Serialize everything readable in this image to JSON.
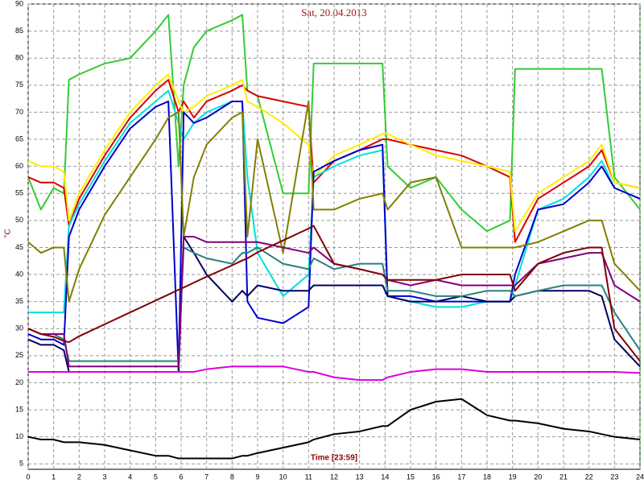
{
  "chart_data": {
    "type": "line",
    "title": "Sat, 20.04.2013",
    "x_label": "Time [23:59]",
    "y_label": "°C",
    "x": [
      0,
      0.5,
      1,
      1.4,
      1.6,
      2,
      3,
      4,
      5,
      5.5,
      5.9,
      6.1,
      6.5,
      7,
      8,
      8.4,
      8.6,
      9,
      10,
      11,
      11.2,
      12,
      13,
      13.9,
      14.1,
      15,
      16,
      17,
      18,
      18.9,
      19.1,
      20,
      21,
      22,
      22.5,
      23,
      24
    ],
    "xlim": [
      0,
      24
    ],
    "xticks": [
      0,
      1,
      2,
      3,
      4,
      5,
      6,
      7,
      8,
      9,
      10,
      11,
      12,
      13,
      14,
      15,
      16,
      17,
      18,
      19,
      20,
      21,
      22,
      23,
      24
    ],
    "ylim": [
      4,
      90
    ],
    "yticks": [
      5,
      10,
      15,
      20,
      25,
      30,
      35,
      40,
      45,
      50,
      55,
      60,
      65,
      70,
      75,
      80,
      85,
      90
    ],
    "grid": true,
    "series": [
      {
        "color": "#33cc33",
        "values": [
          58,
          52,
          56,
          55,
          76,
          77,
          79,
          80,
          85,
          88,
          60,
          75,
          82,
          85,
          87,
          88,
          74,
          73,
          55,
          55,
          79,
          79,
          79,
          79,
          60,
          56,
          58,
          52,
          48,
          50,
          78,
          78,
          78,
          78,
          78,
          58,
          52
        ]
      },
      {
        "color": "#dd0000",
        "values": [
          58,
          57,
          57,
          56,
          49,
          54,
          62,
          69,
          74,
          76,
          70,
          72,
          69,
          72,
          74,
          75,
          74,
          73,
          72,
          71,
          57,
          61,
          63,
          65,
          65,
          64,
          63,
          62,
          60,
          58,
          46,
          54,
          57,
          60,
          63,
          57,
          56
        ]
      },
      {
        "color": "#ffee00",
        "values": [
          61,
          60,
          60,
          59,
          50,
          55,
          63,
          70,
          75,
          77,
          72,
          70,
          71,
          73,
          75,
          76,
          72,
          71,
          68,
          64,
          58,
          62,
          64,
          66,
          66,
          64,
          62,
          61,
          60,
          59,
          48,
          55,
          58,
          61,
          64,
          57,
          56
        ]
      },
      {
        "color": "#00e0e0",
        "values": [
          33,
          33,
          33,
          33,
          49,
          53,
          61,
          68,
          72,
          74,
          68,
          65,
          68,
          70,
          72,
          72,
          58,
          44,
          36,
          40,
          58,
          60,
          62,
          63,
          36,
          35,
          34,
          34,
          35,
          35,
          38,
          52,
          54,
          58,
          61,
          56,
          54
        ]
      },
      {
        "color": "#0000cc",
        "values": [
          29,
          28,
          28,
          27,
          47,
          52,
          60,
          67,
          71,
          72,
          22,
          70,
          68,
          69,
          72,
          72,
          35,
          32,
          31,
          34,
          59,
          61,
          63,
          64,
          36,
          36,
          35,
          35,
          35,
          35,
          40,
          52,
          53,
          57,
          60,
          56,
          54
        ]
      },
      {
        "color": "#000060",
        "values": [
          28,
          27,
          27,
          26,
          22,
          22,
          22,
          22,
          22,
          22,
          22,
          47,
          44,
          40,
          35,
          37,
          36,
          38,
          37,
          37,
          38,
          38,
          38,
          38,
          36,
          35,
          35,
          36,
          35,
          35,
          36,
          37,
          37,
          37,
          36,
          28,
          23
        ]
      },
      {
        "color": "#808000",
        "values": [
          46,
          44,
          45,
          45,
          35,
          41,
          51,
          58,
          65,
          69,
          70,
          47,
          58,
          64,
          69,
          70,
          47,
          65,
          44,
          72,
          52,
          52,
          54,
          55,
          52,
          57,
          58,
          45,
          45,
          45,
          45,
          46,
          48,
          50,
          50,
          42,
          37
        ]
      },
      {
        "color": "#2a8080",
        "values": [
          30,
          29,
          29,
          28,
          24,
          24,
          24,
          24,
          24,
          24,
          24,
          45,
          44,
          43,
          42,
          44,
          44,
          45,
          42,
          41,
          43,
          41,
          42,
          42,
          37,
          37,
          36,
          36,
          37,
          37,
          36,
          37,
          38,
          38,
          38,
          33,
          26
        ]
      },
      {
        "color": "#800080",
        "values": [
          30,
          29,
          29,
          29,
          23,
          23,
          23,
          23,
          23,
          23,
          23,
          47,
          47,
          46,
          46,
          46,
          46,
          46,
          45,
          44,
          45,
          42,
          41,
          40,
          39,
          38,
          39,
          38,
          38,
          38,
          38,
          42,
          43,
          44,
          44,
          38,
          35
        ]
      },
      {
        "color": "#800000",
        "values": [
          30,
          29,
          28.5,
          27.7,
          27.5,
          28.6,
          30.8,
          33,
          35.2,
          36.3,
          37.2,
          37.6,
          38.5,
          39.6,
          41.7,
          42.6,
          43,
          44.1,
          46.3,
          48.5,
          49,
          42,
          41,
          40,
          39,
          39,
          39,
          40,
          40,
          40,
          37,
          42,
          44,
          45,
          45,
          30,
          24
        ]
      },
      {
        "color": "#dd00dd",
        "values": [
          22,
          22,
          22,
          22,
          22,
          22,
          22,
          22,
          22,
          22,
          22,
          22,
          22,
          22.5,
          23,
          23,
          23,
          23,
          23,
          22,
          22,
          21,
          20.5,
          20.5,
          21,
          22,
          22.5,
          22.5,
          22,
          22,
          22,
          22,
          22,
          22,
          22,
          22,
          21.8
        ]
      },
      {
        "color": "#000000",
        "values": [
          10,
          9.5,
          9.5,
          9,
          9,
          9,
          8.5,
          7.5,
          6.5,
          6.5,
          6,
          6,
          6,
          6,
          6,
          6.5,
          6.5,
          7,
          8,
          9,
          9.5,
          10.5,
          11,
          12,
          12,
          15,
          16.5,
          17,
          14,
          13,
          13,
          12.5,
          11.5,
          11,
          10.5,
          10,
          9.5
        ]
      }
    ]
  }
}
